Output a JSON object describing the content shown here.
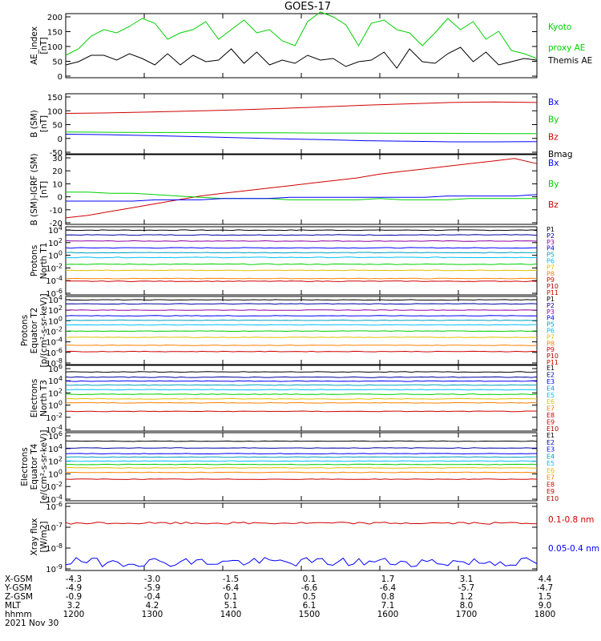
{
  "title": "GOES-17",
  "colors": {
    "black": "#000000",
    "green": "#00d000",
    "blue": "#0000ff",
    "red": "#d00000",
    "navy": "#0000a0",
    "purple": "#9000a0",
    "teal": "#00a0c0",
    "cyan": "#00c0ff",
    "yellow": "#e0c000",
    "orange": "#ff8000",
    "darkred": "#b00000"
  },
  "chart_data": [
    {
      "type": "line",
      "id": "ae",
      "ylabel": [
        "AE_index",
        "[nT]"
      ],
      "yticks": [
        "200",
        "150",
        "100",
        "50",
        "0"
      ],
      "yrange": [
        0,
        200
      ],
      "legend": [
        {
          "text": "Kyoto",
          "color": "green"
        },
        {
          "text": "proxy AE",
          "color": "green"
        },
        {
          "text": "Themis AE",
          "color": "black"
        }
      ],
      "series": [
        {
          "name": "Kyoto proxy AE",
          "color": "green",
          "y": [
            70,
            90,
            130,
            150,
            140,
            160,
            185,
            170,
            120,
            140,
            150,
            175,
            120,
            150,
            180,
            140,
            150,
            115,
            100,
            175,
            205,
            190,
            165,
            100,
            170,
            180,
            150,
            140,
            100,
            140,
            185,
            150,
            175,
            120,
            145,
            85,
            75,
            60
          ]
        },
        {
          "name": "Themis AE",
          "color": "black",
          "y": [
            40,
            50,
            70,
            70,
            55,
            75,
            60,
            40,
            75,
            40,
            70,
            50,
            55,
            90,
            45,
            80,
            40,
            55,
            45,
            70,
            55,
            60,
            35,
            50,
            55,
            80,
            30,
            90,
            50,
            45,
            75,
            95,
            50,
            80,
            40,
            50,
            60,
            55
          ]
        }
      ]
    },
    {
      "type": "line",
      "id": "bsm",
      "ylabel": [
        "B (SM)",
        "[nT]"
      ],
      "yticks": [
        "150",
        "100",
        "50",
        "0",
        "-50"
      ],
      "yrange": [
        -60,
        160
      ],
      "legend": [
        {
          "text": "Bx",
          "color": "blue"
        },
        {
          "text": "By",
          "color": "green"
        },
        {
          "text": "Bz",
          "color": "red"
        },
        {
          "text": "Bmag",
          "color": "black"
        }
      ],
      "series": [
        {
          "name": "Bz",
          "color": "red",
          "y": [
            88,
            90,
            93,
            97,
            101,
            106,
            112,
            118,
            123,
            128,
            130,
            128
          ]
        },
        {
          "name": "Bx",
          "color": "blue",
          "y": [
            12,
            10,
            7,
            3,
            -1,
            -5,
            -8,
            -12,
            -14,
            -16,
            -16,
            -15
          ]
        },
        {
          "name": "By",
          "color": "green",
          "y": [
            20,
            19,
            18,
            18,
            17,
            17,
            16,
            16,
            15,
            15,
            14,
            14
          ]
        }
      ]
    },
    {
      "type": "line",
      "id": "bigrf",
      "ylabel": [
        "B (SM)-IGRF (SM)",
        "[nT]"
      ],
      "yticks": [
        "30",
        "20",
        "10",
        "0",
        "-10",
        "-20"
      ],
      "yrange": [
        -22,
        32
      ],
      "legend": [
        {
          "text": "Bx",
          "color": "blue"
        },
        {
          "text": "By",
          "color": "green"
        },
        {
          "text": "Bz",
          "color": "red"
        }
      ],
      "series": [
        {
          "name": "Bz",
          "color": "red",
          "y": [
            -17,
            -15,
            -12,
            -9,
            -6,
            -3,
            0,
            2,
            4,
            6,
            8,
            10,
            12,
            14,
            17,
            19,
            21,
            23,
            25,
            27,
            29,
            25
          ]
        },
        {
          "name": "By",
          "color": "green",
          "y": [
            3,
            3,
            2,
            2,
            1,
            0,
            -1,
            -2,
            -2,
            -2,
            -3,
            -3,
            -3,
            -3,
            -2,
            -3,
            -3,
            -3,
            -2,
            -2,
            -2,
            -2
          ]
        },
        {
          "name": "Bx",
          "color": "blue",
          "y": [
            -4,
            -4,
            -4,
            -4,
            -3,
            -3,
            -3,
            -2,
            -2,
            -2,
            -1,
            -1,
            -1,
            -1,
            -1,
            -1,
            -1,
            0,
            0,
            0,
            0,
            1
          ]
        }
      ]
    },
    {
      "type": "line",
      "id": "pnt1",
      "ylabel": [
        "Protons",
        "North T1"
      ],
      "yticks": [
        "10^4",
        "10^2",
        "10^0",
        "10^-2",
        "10^-4",
        "10^-6"
      ],
      "yrange": [
        -6,
        4
      ],
      "legend": [
        "P1",
        "P2",
        "P3",
        "P4",
        "P5",
        "P6",
        "P7",
        "P8",
        "P9",
        "P10",
        "P11"
      ],
      "series": [
        {
          "name": "P1",
          "color": "black",
          "log": 3.5
        },
        {
          "name": "P2",
          "color": "navy",
          "log": 2.8
        },
        {
          "name": "P3",
          "color": "purple",
          "log": 1.9
        },
        {
          "name": "P4",
          "color": "blue",
          "log": 0.9
        },
        {
          "name": "P5",
          "color": "teal",
          "log": 0.2
        },
        {
          "name": "P6",
          "color": "cyan",
          "log": -0.5
        },
        {
          "name": "P7",
          "color": "green",
          "log": -1.5
        },
        {
          "name": "P8",
          "color": "yellow",
          "log": -2.4
        },
        {
          "name": "P9",
          "color": "orange",
          "log": -3.6
        },
        {
          "name": "P10",
          "color": "red",
          "log": -4.0
        }
      ]
    },
    {
      "type": "line",
      "id": "pet2",
      "ylabel": [
        "Protons",
        "Equator T2",
        "[p/(cm²-s-sr-keV)]"
      ],
      "yticks": [
        "10^4",
        "10^2",
        "10^0",
        "10^-2",
        "10^-4",
        "10^-6",
        "10^-8"
      ],
      "yrange": [
        -8,
        4
      ],
      "legend": [
        "P1",
        "P2",
        "P3",
        "P4",
        "P5",
        "P6",
        "P7",
        "P8",
        "P9",
        "P10",
        "P11"
      ],
      "series": [
        {
          "name": "P1",
          "color": "black",
          "log": 3.4
        },
        {
          "name": "P2",
          "color": "navy",
          "log": 2.7
        },
        {
          "name": "P3",
          "color": "purple",
          "log": 1.6
        },
        {
          "name": "P4",
          "color": "blue",
          "log": 0.6
        },
        {
          "name": "P5",
          "color": "teal",
          "log": -0.2
        },
        {
          "name": "P6",
          "color": "cyan",
          "log": -1.0
        },
        {
          "name": "P7",
          "color": "green",
          "log": -2.1
        },
        {
          "name": "P8",
          "color": "yellow",
          "log": -3.2
        },
        {
          "name": "P9",
          "color": "orange",
          "log": -4.6
        },
        {
          "name": "P10",
          "color": "red",
          "log": -5.7
        }
      ]
    },
    {
      "type": "line",
      "id": "ent3",
      "ylabel": [
        "Electrons",
        "North T3"
      ],
      "yticks": [
        "10^6",
        "10^4",
        "10^2",
        "10^0",
        "10^-2",
        "10^-4"
      ],
      "yrange": [
        -4,
        6
      ],
      "legend": [
        "E1",
        "E2",
        "E3",
        "E4",
        "E5",
        "E6",
        "E7",
        "E8",
        "E9",
        "E10"
      ],
      "series": [
        {
          "name": "E1",
          "color": "black",
          "log": 5.0
        },
        {
          "name": "E2",
          "color": "navy",
          "log": 4.2
        },
        {
          "name": "E3",
          "color": "blue",
          "log": 3.6
        },
        {
          "name": "E4",
          "color": "teal",
          "log": 3.0
        },
        {
          "name": "E5",
          "color": "cyan",
          "log": 2.3
        },
        {
          "name": "E6",
          "color": "green",
          "log": 1.6
        },
        {
          "name": "E7",
          "color": "yellow",
          "log": 0.9
        },
        {
          "name": "E8",
          "color": "orange",
          "log": 0.3
        },
        {
          "name": "E9",
          "color": "red",
          "log": -1.0
        }
      ]
    },
    {
      "type": "line",
      "id": "eet4",
      "ylabel": [
        "Electrons",
        "Equator T4",
        "[e/(cm²-s-sr-keV)]"
      ],
      "yticks": [
        "10^6",
        "10^4",
        "10^2",
        "10^0",
        "10^-2",
        "10^-4"
      ],
      "yrange": [
        -5,
        7
      ],
      "legend": [
        "E1",
        "E2",
        "E3",
        "E4",
        "E5",
        "E6",
        "E7",
        "E8",
        "E9",
        "E10"
      ],
      "series": [
        {
          "name": "E1",
          "color": "black",
          "log": 5.5
        },
        {
          "name": "E2",
          "color": "navy",
          "log": 4.3
        },
        {
          "name": "E3",
          "color": "blue",
          "log": 3.3
        },
        {
          "name": "E4",
          "color": "teal",
          "log": 2.7
        },
        {
          "name": "E5",
          "color": "cyan",
          "log": 2.0
        },
        {
          "name": "E6",
          "color": "green",
          "log": 1.4
        },
        {
          "name": "E7",
          "color": "yellow",
          "log": 0.8
        },
        {
          "name": "E8",
          "color": "orange",
          "log": 0.0
        },
        {
          "name": "E9",
          "color": "red",
          "log": -1.2
        }
      ]
    },
    {
      "type": "line",
      "id": "xray",
      "ylabel": [
        "Xray flux",
        "[W/m2]"
      ],
      "yticks": [
        "10^-6",
        "10^-7",
        "10^-8",
        "10^-9"
      ],
      "yrange": [
        -9.1,
        -5.9
      ],
      "legend": [
        {
          "text": "0.1-0.8 nm",
          "color": "red"
        },
        {
          "text": "0.05-0.4 nm",
          "color": "blue"
        }
      ],
      "series": [
        {
          "name": "0.1-0.8 nm",
          "color": "red",
          "log": -6.85
        },
        {
          "name": "0.05-0.4 nm",
          "color": "blue",
          "log": -8.7
        }
      ]
    }
  ],
  "xaxis": {
    "rows": [
      {
        "label": "X-GSM",
        "values": [
          "-4.3",
          "-3.0",
          "-1.5",
          "0.1",
          "1.7",
          "3.1",
          "4.4"
        ]
      },
      {
        "label": "Y-GSM",
        "values": [
          "-4.9",
          "-5.9",
          "-6.4",
          "-6.6",
          "-6.4",
          "-5.7",
          "-4.7"
        ]
      },
      {
        "label": "Z-GSM",
        "values": [
          "-0.9",
          "-0.4",
          "0.1",
          "0.5",
          "0.8",
          "1.2",
          "1.5"
        ]
      },
      {
        "label": "MLT",
        "values": [
          "3.2",
          "4.2",
          "5.1",
          "6.1",
          "7.1",
          "8.0",
          "9.0"
        ]
      },
      {
        "label": "hhmm",
        "values": [
          "1200",
          "1300",
          "1400",
          "1500",
          "1600",
          "1700",
          "1800"
        ]
      }
    ],
    "date": "2021 Nov 30"
  }
}
